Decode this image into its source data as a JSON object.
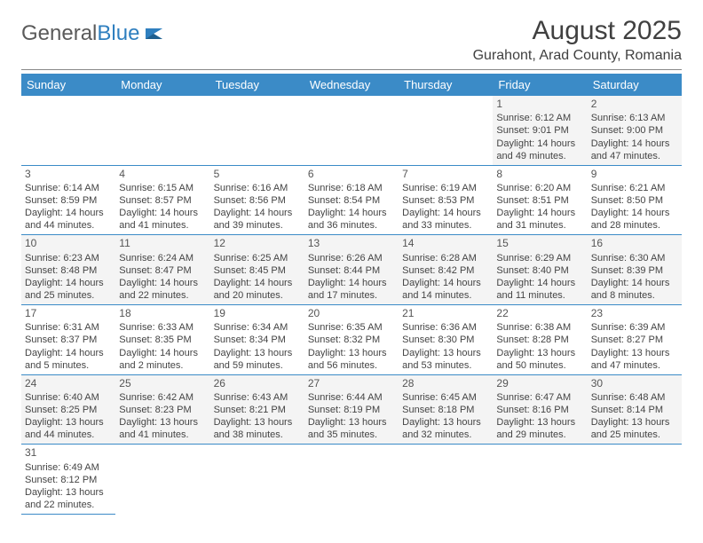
{
  "logo": {
    "text1": "General",
    "text2": "Blue"
  },
  "title": "August 2025",
  "location": "Gurahont, Arad County, Romania",
  "columns": [
    "Sunday",
    "Monday",
    "Tuesday",
    "Wednesday",
    "Thursday",
    "Friday",
    "Saturday"
  ],
  "colors": {
    "header_bg": "#3b8bc7",
    "header_fg": "#ffffff",
    "row_alt_bg": "#f4f4f4",
    "row_bg": "#ffffff",
    "text": "#444444",
    "rule": "#3b8bc7"
  },
  "weeks": [
    [
      null,
      null,
      null,
      null,
      null,
      {
        "n": "1",
        "sunrise": "6:12 AM",
        "sunset": "9:01 PM",
        "daylight": "14 hours and 49 minutes."
      },
      {
        "n": "2",
        "sunrise": "6:13 AM",
        "sunset": "9:00 PM",
        "daylight": "14 hours and 47 minutes."
      }
    ],
    [
      {
        "n": "3",
        "sunrise": "6:14 AM",
        "sunset": "8:59 PM",
        "daylight": "14 hours and 44 minutes."
      },
      {
        "n": "4",
        "sunrise": "6:15 AM",
        "sunset": "8:57 PM",
        "daylight": "14 hours and 41 minutes."
      },
      {
        "n": "5",
        "sunrise": "6:16 AM",
        "sunset": "8:56 PM",
        "daylight": "14 hours and 39 minutes."
      },
      {
        "n": "6",
        "sunrise": "6:18 AM",
        "sunset": "8:54 PM",
        "daylight": "14 hours and 36 minutes."
      },
      {
        "n": "7",
        "sunrise": "6:19 AM",
        "sunset": "8:53 PM",
        "daylight": "14 hours and 33 minutes."
      },
      {
        "n": "8",
        "sunrise": "6:20 AM",
        "sunset": "8:51 PM",
        "daylight": "14 hours and 31 minutes."
      },
      {
        "n": "9",
        "sunrise": "6:21 AM",
        "sunset": "8:50 PM",
        "daylight": "14 hours and 28 minutes."
      }
    ],
    [
      {
        "n": "10",
        "sunrise": "6:23 AM",
        "sunset": "8:48 PM",
        "daylight": "14 hours and 25 minutes."
      },
      {
        "n": "11",
        "sunrise": "6:24 AM",
        "sunset": "8:47 PM",
        "daylight": "14 hours and 22 minutes."
      },
      {
        "n": "12",
        "sunrise": "6:25 AM",
        "sunset": "8:45 PM",
        "daylight": "14 hours and 20 minutes."
      },
      {
        "n": "13",
        "sunrise": "6:26 AM",
        "sunset": "8:44 PM",
        "daylight": "14 hours and 17 minutes."
      },
      {
        "n": "14",
        "sunrise": "6:28 AM",
        "sunset": "8:42 PM",
        "daylight": "14 hours and 14 minutes."
      },
      {
        "n": "15",
        "sunrise": "6:29 AM",
        "sunset": "8:40 PM",
        "daylight": "14 hours and 11 minutes."
      },
      {
        "n": "16",
        "sunrise": "6:30 AM",
        "sunset": "8:39 PM",
        "daylight": "14 hours and 8 minutes."
      }
    ],
    [
      {
        "n": "17",
        "sunrise": "6:31 AM",
        "sunset": "8:37 PM",
        "daylight": "14 hours and 5 minutes."
      },
      {
        "n": "18",
        "sunrise": "6:33 AM",
        "sunset": "8:35 PM",
        "daylight": "14 hours and 2 minutes."
      },
      {
        "n": "19",
        "sunrise": "6:34 AM",
        "sunset": "8:34 PM",
        "daylight": "13 hours and 59 minutes."
      },
      {
        "n": "20",
        "sunrise": "6:35 AM",
        "sunset": "8:32 PM",
        "daylight": "13 hours and 56 minutes."
      },
      {
        "n": "21",
        "sunrise": "6:36 AM",
        "sunset": "8:30 PM",
        "daylight": "13 hours and 53 minutes."
      },
      {
        "n": "22",
        "sunrise": "6:38 AM",
        "sunset": "8:28 PM",
        "daylight": "13 hours and 50 minutes."
      },
      {
        "n": "23",
        "sunrise": "6:39 AM",
        "sunset": "8:27 PM",
        "daylight": "13 hours and 47 minutes."
      }
    ],
    [
      {
        "n": "24",
        "sunrise": "6:40 AM",
        "sunset": "8:25 PM",
        "daylight": "13 hours and 44 minutes."
      },
      {
        "n": "25",
        "sunrise": "6:42 AM",
        "sunset": "8:23 PM",
        "daylight": "13 hours and 41 minutes."
      },
      {
        "n": "26",
        "sunrise": "6:43 AM",
        "sunset": "8:21 PM",
        "daylight": "13 hours and 38 minutes."
      },
      {
        "n": "27",
        "sunrise": "6:44 AM",
        "sunset": "8:19 PM",
        "daylight": "13 hours and 35 minutes."
      },
      {
        "n": "28",
        "sunrise": "6:45 AM",
        "sunset": "8:18 PM",
        "daylight": "13 hours and 32 minutes."
      },
      {
        "n": "29",
        "sunrise": "6:47 AM",
        "sunset": "8:16 PM",
        "daylight": "13 hours and 29 minutes."
      },
      {
        "n": "30",
        "sunrise": "6:48 AM",
        "sunset": "8:14 PM",
        "daylight": "13 hours and 25 minutes."
      }
    ],
    [
      {
        "n": "31",
        "sunrise": "6:49 AM",
        "sunset": "8:12 PM",
        "daylight": "13 hours and 22 minutes."
      },
      null,
      null,
      null,
      null,
      null,
      null
    ]
  ],
  "labels": {
    "sunrise": "Sunrise: ",
    "sunset": "Sunset: ",
    "daylight": "Daylight: "
  }
}
